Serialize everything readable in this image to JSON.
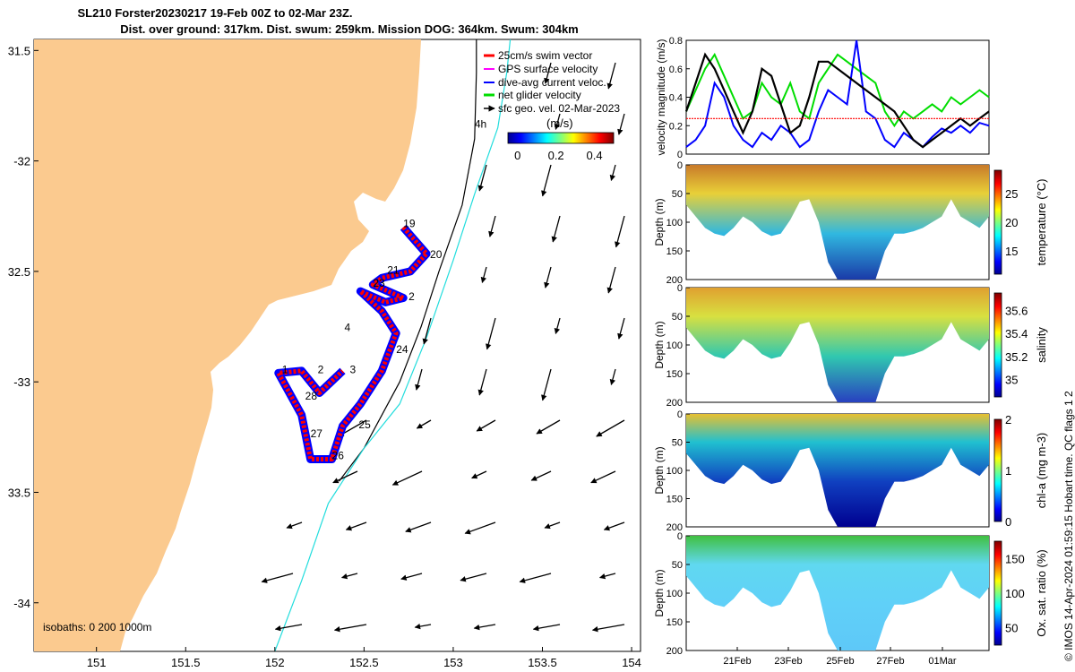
{
  "title_line1": "SL210 Forster20230217 19-Feb 00Z to 02-Mar 23Z.",
  "title_line2": "Dist. over ground: 317km. Dist. swum: 259km. Mission DOG: 364km. Swum: 304km",
  "side_note": "© IMOS 14-Apr-2024 01:59:15 Hobart time. QC flags 1  2",
  "colors": {
    "land": "#fbca8f",
    "swim_vector": "#ff0000",
    "gps_vel": "#ff00ff",
    "dive_avg": "#0000ff",
    "net_vel": "#00dd00",
    "sfc_geo": "#000000",
    "isobath_200": "#000000",
    "isobath_1000": "#22dddd"
  },
  "chart_data": [
    {
      "type": "map",
      "xlim": [
        150.65,
        154.05
      ],
      "ylim": [
        -34.22,
        -31.45
      ],
      "x_ticks": [
        151,
        151.5,
        152,
        152.5,
        153,
        153.5,
        154
      ],
      "x_tick_labels": [
        "151",
        "151.5",
        "152",
        "152.5",
        "153",
        "153.5",
        "154"
      ],
      "y_ticks": [
        -31.5,
        -32,
        -32.5,
        -33,
        -33.5,
        -34
      ],
      "y_tick_labels": [
        "31.5",
        "-32",
        "32.5",
        "-33",
        "33.5",
        "-34"
      ],
      "legend": {
        "position": "top-right",
        "entries": [
          "25cm/s swim vector",
          "GPS surface velocity",
          "dive-avg current veloc.",
          "net glider velocity",
          "sfc geo. vel. 02-Mar-2023"
        ]
      },
      "colorbar": {
        "label": "(m/s)",
        "ticks": [
          0,
          0.2,
          0.4
        ],
        "tick_labels": [
          "0",
          "0.2",
          "0.4"
        ],
        "range": [
          -0.05,
          0.5
        ]
      },
      "isobath_label": "isobaths: 0   200   1000m",
      "track_labels": [
        {
          "text": "19",
          "lon": 152.72,
          "lat": -32.3
        },
        {
          "text": "20",
          "lon": 152.87,
          "lat": -32.44
        },
        {
          "text": "21",
          "lon": 152.63,
          "lat": -32.51
        },
        {
          "text": "23",
          "lon": 152.55,
          "lat": -32.57
        },
        {
          "text": "2",
          "lon": 152.75,
          "lat": -32.63
        },
        {
          "text": "4",
          "lon": 152.39,
          "lat": -32.77
        },
        {
          "text": "4h",
          "lon": 153.12,
          "lat": -31.85
        },
        {
          "text": "24",
          "lon": 152.68,
          "lat": -32.87
        },
        {
          "text": "1",
          "lon": 152.04,
          "lat": -32.96
        },
        {
          "text": "2",
          "lon": 152.24,
          "lat": -32.96
        },
        {
          "text": "3",
          "lon": 152.42,
          "lat": -32.96
        },
        {
          "text": "28",
          "lon": 152.17,
          "lat": -33.08
        },
        {
          "text": "25",
          "lon": 152.47,
          "lat": -33.21
        },
        {
          "text": "27",
          "lon": 152.2,
          "lat": -33.25
        },
        {
          "text": "26",
          "lon": 152.32,
          "lat": -33.35
        }
      ],
      "track": [
        [
          152.72,
          -32.3
        ],
        [
          152.85,
          -32.42
        ],
        [
          152.76,
          -32.5
        ],
        [
          152.6,
          -32.53
        ],
        [
          152.55,
          -32.56
        ],
        [
          152.72,
          -32.62
        ],
        [
          152.62,
          -32.64
        ],
        [
          152.48,
          -32.59
        ],
        [
          152.6,
          -32.68
        ],
        [
          152.68,
          -32.78
        ],
        [
          152.6,
          -32.95
        ],
        [
          152.48,
          -33.1
        ],
        [
          152.38,
          -33.2
        ],
        [
          152.32,
          -33.35
        ],
        [
          152.2,
          -33.35
        ],
        [
          152.15,
          -33.15
        ],
        [
          152.02,
          -32.96
        ],
        [
          152.15,
          -32.95
        ],
        [
          152.25,
          -33.05
        ],
        [
          152.38,
          -32.95
        ]
      ],
      "isobath_200": [
        [
          152.36,
          -33.45
        ],
        [
          152.5,
          -33.3
        ],
        [
          152.7,
          -33.0
        ],
        [
          152.82,
          -32.75
        ],
        [
          152.92,
          -32.5
        ],
        [
          153.05,
          -32.2
        ],
        [
          153.12,
          -31.9
        ],
        [
          153.13,
          -31.6
        ],
        [
          153.13,
          -31.45
        ]
      ],
      "isobath_1000": [
        [
          152.0,
          -34.22
        ],
        [
          152.15,
          -33.9
        ],
        [
          152.3,
          -33.55
        ],
        [
          152.5,
          -33.3
        ],
        [
          152.7,
          -33.1
        ],
        [
          152.85,
          -32.8
        ],
        [
          153.0,
          -32.45
        ],
        [
          153.12,
          -32.15
        ],
        [
          153.25,
          -31.85
        ],
        [
          153.3,
          -31.6
        ],
        [
          153.32,
          -31.45
        ]
      ]
    },
    {
      "type": "line",
      "ylabel": "velocity magnitude (m/s)",
      "x_range": [
        "2023-02-19",
        "2023-03-03"
      ],
      "ylim": [
        0,
        0.8
      ],
      "y_ticks": [
        0,
        0.2,
        0.4,
        0.6,
        0.8
      ],
      "y_tick_labels": [
        "0",
        "0.2",
        "0.4",
        "0.6",
        "0.8"
      ],
      "series": [
        {
          "color": "#00dd00",
          "values": [
            0.3,
            0.45,
            0.6,
            0.7,
            0.55,
            0.4,
            0.25,
            0.3,
            0.5,
            0.4,
            0.35,
            0.5,
            0.3,
            0.25,
            0.5,
            0.6,
            0.7,
            0.65,
            0.6,
            0.55,
            0.5,
            0.3,
            0.2,
            0.3,
            0.25,
            0.3,
            0.35,
            0.3,
            0.4,
            0.35,
            0.4,
            0.45,
            0.4
          ]
        },
        {
          "color": "#0000ff",
          "values": [
            0.05,
            0.1,
            0.2,
            0.5,
            0.4,
            0.2,
            0.1,
            0.05,
            0.15,
            0.1,
            0.2,
            0.15,
            0.05,
            0.1,
            0.3,
            0.45,
            0.4,
            0.35,
            0.8,
            0.3,
            0.25,
            0.1,
            0.05,
            0.15,
            0.1,
            0.05,
            0.12,
            0.18,
            0.15,
            0.2,
            0.15,
            0.22,
            0.2
          ]
        },
        {
          "color": "#000000",
          "values": [
            0.3,
            0.5,
            0.7,
            0.6,
            0.45,
            0.3,
            0.15,
            0.3,
            0.6,
            0.55,
            0.35,
            0.15,
            0.2,
            0.4,
            0.65,
            0.65,
            0.6,
            0.55,
            0.5,
            0.45,
            0.4,
            0.35,
            0.3,
            0.2,
            0.1,
            0.05,
            0.1,
            0.15,
            0.2,
            0.25,
            0.2,
            0.25,
            0.3
          ]
        },
        {
          "color": "#ff0000",
          "values": [
            0.25,
            0.25,
            0.25,
            0.25,
            0.25,
            0.25,
            0.25,
            0.25,
            0.25,
            0.25,
            0.25,
            0.25,
            0.25,
            0.25,
            0.25,
            0.25,
            0.25,
            0.25,
            0.25,
            0.25,
            0.25,
            0.25,
            0.25,
            0.25,
            0.25,
            0.25,
            0.25,
            0.25,
            0.25,
            0.25,
            0.25,
            0.25,
            0.25
          ]
        }
      ]
    },
    {
      "type": "heatmap",
      "ylabel": "Depth (m)",
      "colorbar_label": "temperature (°C)",
      "ylim": [
        200,
        0
      ],
      "y_ticks": [
        0,
        50,
        100,
        150,
        200
      ],
      "colorbar_ticks": [
        15,
        20,
        25
      ],
      "colorbar_range": [
        11,
        29
      ]
    },
    {
      "type": "heatmap",
      "ylabel": "Depth (m)",
      "colorbar_label": "salinity",
      "ylim": [
        200,
        0
      ],
      "y_ticks": [
        0,
        50,
        100,
        150,
        200
      ],
      "colorbar_ticks": [
        35,
        35.2,
        35.4,
        35.6
      ],
      "colorbar_range": [
        34.85,
        35.75
      ]
    },
    {
      "type": "heatmap",
      "ylabel": "Depth (m)",
      "colorbar_label": "chl-a (mg m-3)",
      "ylim": [
        200,
        0
      ],
      "y_ticks": [
        0,
        50,
        100,
        150,
        200
      ],
      "colorbar_ticks": [
        0,
        1,
        2
      ],
      "colorbar_range": [
        0,
        2
      ]
    },
    {
      "type": "heatmap",
      "ylabel": "Depth (m)",
      "colorbar_label": "Ox. sat. ratio (%)",
      "ylim": [
        200,
        0
      ],
      "y_ticks": [
        0,
        50,
        100,
        150,
        200
      ],
      "colorbar_ticks": [
        50,
        100,
        150
      ],
      "colorbar_range": [
        25,
        175
      ],
      "x_tick_labels": [
        "21Feb",
        "23Feb",
        "25Feb",
        "27Feb",
        "01Mar"
      ]
    }
  ]
}
